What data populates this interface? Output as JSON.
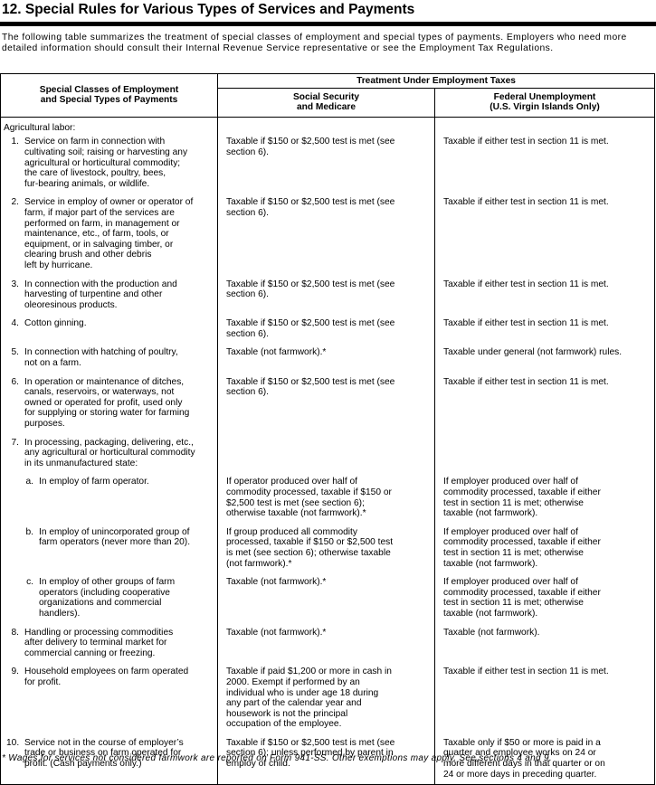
{
  "header": {
    "title": "12. Special Rules for Various Types of Services and Payments",
    "intro": "The following table summarizes the treatment of special classes of employment and special types of payments. Employers who need more detailed information should consult their Internal Revenue Service representative or see the Employment Tax Regulations."
  },
  "table": {
    "col1_header": [
      "Special Classes of Employment",
      "and Special Types of Payments"
    ],
    "group_header": "Treatment Under Employment Taxes",
    "col2_header": [
      "Social Security",
      "and Medicare"
    ],
    "col3_header": [
      "Federal Unemployment",
      "(U.S. Virgin Islands Only)"
    ],
    "section_label": "Agricultural labor:",
    "rows": [
      {
        "number": "1.",
        "level": 1,
        "classification": [
          "Service on farm in connection with",
          "cultivating soil; raising or harvesting any",
          "agricultural or horticultural commodity;",
          "the care of livestock, poultry, bees,",
          "fur-bearing animals, or wildlife."
        ],
        "social_security": [
          "Taxable if $150 or $2,500 test is met (see",
          "section 6)."
        ],
        "federal_unemployment": [
          "Taxable if either test in section 11 is met."
        ]
      },
      {
        "number": "2.",
        "level": 1,
        "classification": [
          "Service in employ of owner or operator of",
          "farm, if major part of the services are",
          "performed on farm, in management or",
          "maintenance, etc., of farm, tools, or",
          "equipment, or in salvaging timber, or",
          "clearing brush and other debris",
          "left by hurricane."
        ],
        "social_security": [
          "Taxable if $150 or $2,500 test is met (see",
          "section 6)."
        ],
        "federal_unemployment": [
          "Taxable if either test in section 11 is met."
        ]
      },
      {
        "number": "3.",
        "level": 1,
        "classification": [
          "In connection with the production and",
          "harvesting of turpentine and other",
          "oleoresinous products."
        ],
        "social_security": [
          "Taxable if $150 or $2,500 test is met (see",
          "section 6)."
        ],
        "federal_unemployment": [
          "Taxable if either test in section 11 is met."
        ]
      },
      {
        "number": "4.",
        "level": 1,
        "classification": [
          "Cotton ginning."
        ],
        "social_security": [
          "Taxable if $150 or $2,500 test is met (see",
          "section 6)."
        ],
        "federal_unemployment": [
          "Taxable if either test in section 11 is met."
        ]
      },
      {
        "number": "5.",
        "level": 1,
        "classification": [
          "In connection with hatching of poultry,",
          "not on a farm."
        ],
        "social_security": [
          "Taxable (not farmwork).*"
        ],
        "federal_unemployment": [
          "Taxable under general (not farmwork) rules."
        ]
      },
      {
        "number": "6.",
        "level": 1,
        "classification": [
          "In operation or maintenance of ditches,",
          "canals, reservoirs, or waterways, not",
          "owned or operated for profit, used only",
          "for supplying or storing water for farming",
          "purposes."
        ],
        "social_security": [
          "Taxable if $150 or $2,500 test is met (see",
          "section 6)."
        ],
        "federal_unemployment": [
          "Taxable if either test in section 11 is met."
        ]
      },
      {
        "number": "7.",
        "level": 1,
        "classification": [
          "In processing, packaging, delivering, etc.,",
          "any agricultural or horticultural commodity",
          "in its unmanufactured state:"
        ],
        "social_security": [],
        "federal_unemployment": []
      },
      {
        "number": "a.",
        "level": 2,
        "classification": [
          "In employ of farm operator."
        ],
        "social_security": [
          "If operator produced over half of",
          "commodity processed, taxable if $150 or",
          "$2,500 test is met (see section 6);",
          "otherwise taxable (not farmwork).*"
        ],
        "federal_unemployment": [
          "If employer produced over half of",
          "commodity processed, taxable if either",
          "test in section 11 is met; otherwise",
          "taxable (not farmwork)."
        ]
      },
      {
        "number": "b.",
        "level": 2,
        "classification": [
          "In employ of unincorporated group of",
          "farm operators (never more than 20)."
        ],
        "social_security": [
          "If group produced all commodity",
          "processed, taxable if $150 or $2,500 test",
          "is met (see section 6); otherwise taxable",
          "(not farmwork).*"
        ],
        "federal_unemployment": [
          "If employer produced over half of",
          "commodity processed, taxable if either",
          "test in section 11 is met; otherwise",
          "taxable (not farmwork)."
        ]
      },
      {
        "number": "c.",
        "level": 2,
        "classification": [
          "In employ of other groups of farm",
          "operators (including cooperative",
          "organizations and commercial",
          "handlers)."
        ],
        "social_security": [
          "Taxable (not farmwork).*"
        ],
        "federal_unemployment": [
          "If employer produced over half of",
          "commodity processed, taxable if either",
          "test in section 11 is met; otherwise",
          "taxable (not farmwork)."
        ]
      },
      {
        "number": "8.",
        "level": 1,
        "classification": [
          "Handling or processing commodities",
          "after delivery to terminal market for",
          "commercial canning or freezing."
        ],
        "social_security": [
          "Taxable (not farmwork).*"
        ],
        "federal_unemployment": [
          "Taxable (not farmwork)."
        ]
      },
      {
        "number": "9.",
        "level": 1,
        "classification": [
          "Household employees on farm operated",
          "for profit."
        ],
        "social_security": [
          "Taxable if paid $1,200 or more in cash in",
          "2000. Exempt if performed by an",
          "individual who is under age 18 during",
          "any part of the calendar year and",
          "housework is not the principal",
          "occupation of the employee."
        ],
        "federal_unemployment": [
          "Taxable if either test in section 11 is met."
        ]
      },
      {
        "number": "10.",
        "level": 1,
        "classification": [
          "Service not in the course of employer’s",
          "trade or business on farm operated for",
          "profit. (Cash payments only.)"
        ],
        "social_security": [
          "Taxable if $150 or $2,500 test is met (see",
          "section 6); unless performed by parent in",
          "employ of child."
        ],
        "federal_unemployment": [
          "Taxable only if $50 or more is paid in a",
          "quarter and employee works on 24 or",
          "more different days in that quarter or on",
          "24 or more days in preceding quarter."
        ]
      }
    ]
  },
  "footnote": "* Wages for services not considered farmwork are reported on Form 941-SS. Other exemptions may apply. See sections 4 and 9."
}
